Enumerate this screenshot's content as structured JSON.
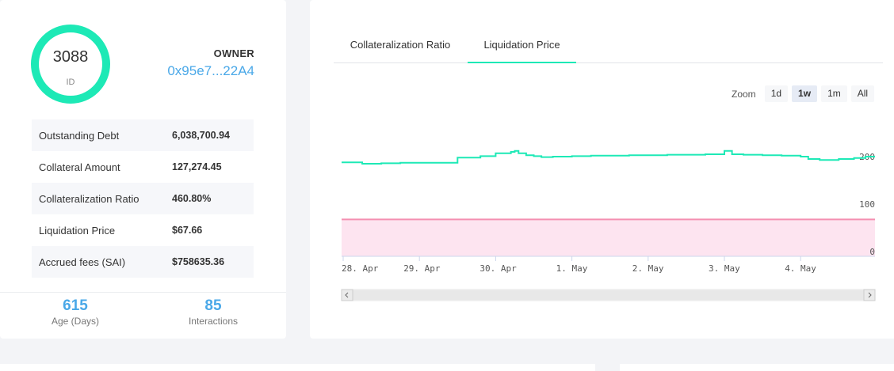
{
  "vault": {
    "id_number": "3088",
    "id_label": "ID",
    "owner_label": "OWNER",
    "owner_address": "0x95e7...22A4"
  },
  "stats": [
    {
      "label": "Outstanding Debt",
      "value": "6,038,700.94"
    },
    {
      "label": "Collateral Amount",
      "value": "127,274.45"
    },
    {
      "label": "Collateralization Ratio",
      "value": "460.80%"
    },
    {
      "label": "Liquidation Price",
      "value": "$67.66"
    },
    {
      "label": "Accrued fees (SAI)",
      "value": "$758635.36"
    }
  ],
  "footer": {
    "age_value": "615",
    "age_label": "Age (Days)",
    "interactions_value": "85",
    "interactions_label": "Interactions"
  },
  "tabs": [
    {
      "label": "Collateralization Ratio",
      "active": false
    },
    {
      "label": "Liquidation Price",
      "active": true
    }
  ],
  "zoom": {
    "label": "Zoom",
    "options": [
      "1d",
      "1w",
      "1m",
      "All"
    ],
    "active": "1w"
  },
  "colors": {
    "accent": "#1de9b6",
    "link": "#4aa8e8",
    "liquidation_line": "#f48fb1",
    "liquidation_fill": "#fde4f0"
  },
  "chart_data": {
    "type": "line",
    "title": "",
    "x_tick_labels": [
      "28. Apr",
      "29. Apr",
      "30. Apr",
      "1. May",
      "2. May",
      "3. May",
      "4. May"
    ],
    "y_tick_labels": [
      "0",
      "100",
      "200"
    ],
    "ylim": [
      0,
      200
    ],
    "grid": false,
    "x": [
      0,
      0.25,
      0.5,
      0.75,
      1.0,
      1.25,
      1.5,
      1.8,
      2.0,
      2.2,
      2.25,
      2.3,
      2.4,
      2.5,
      2.6,
      2.75,
      3.0,
      3.25,
      3.5,
      3.75,
      4.0,
      4.25,
      4.5,
      4.75,
      5.0,
      5.1,
      5.25,
      5.5,
      5.75,
      6.0,
      6.1,
      6.25,
      6.5,
      6.7,
      6.85
    ],
    "series": [
      {
        "values": [
          188,
          185,
          186,
          187,
          187,
          187,
          198,
          201,
          207,
          210,
          212,
          207,
          203,
          201,
          199,
          200,
          201,
          202,
          202,
          203,
          203,
          204,
          204,
          205,
          212,
          205,
          204,
          203,
          202,
          200,
          195,
          193,
          195,
          197,
          200
        ]
      },
      {
        "values": [
          67.66,
          67.66
        ],
        "x": [
          0,
          6.85
        ],
        "fill": true
      }
    ],
    "navigator": true
  }
}
